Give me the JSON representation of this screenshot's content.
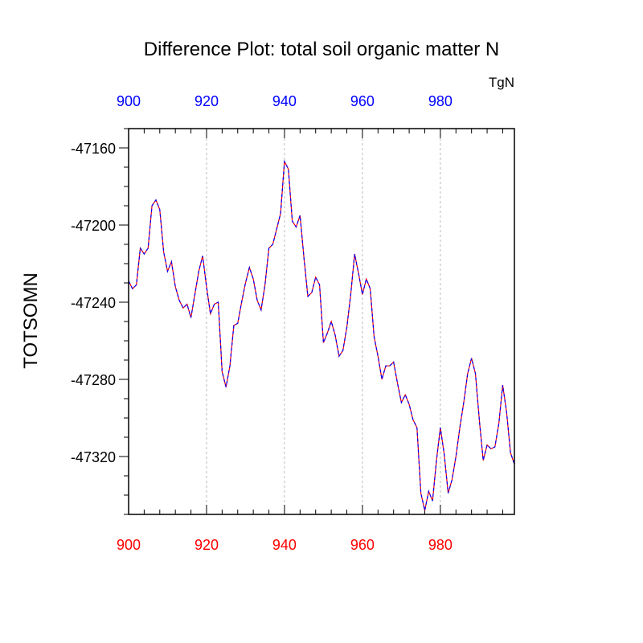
{
  "chart_data": {
    "type": "line",
    "title": "Difference Plot: total soil organic matter N",
    "units": "TgN",
    "ylabel": "TOTSOMN",
    "xlabel": "",
    "xlim": [
      900,
      999
    ],
    "ylim": [
      -47350,
      -47150
    ],
    "x_ticks": [
      900,
      920,
      940,
      960,
      980
    ],
    "y_ticks": [
      -47160,
      -47200,
      -47240,
      -47280,
      -47320
    ],
    "bottom_tick_color": "#ff0000",
    "top_tick_color": "#0000ff",
    "line_colors": [
      "#ff0000",
      "#0000ff"
    ],
    "grid": "vertical dotted at x ticks",
    "series": [
      {
        "x": [
          900,
          901,
          902,
          903,
          904,
          905,
          906,
          907,
          908,
          909,
          910,
          911,
          912,
          913,
          914,
          915,
          916,
          917,
          918,
          919,
          920,
          921,
          922,
          923,
          924,
          925,
          926,
          927,
          928,
          929,
          930,
          931,
          932,
          933,
          934,
          935,
          936,
          937,
          938,
          939,
          940,
          941,
          942,
          943,
          944,
          945,
          946,
          947,
          948,
          949,
          950,
          951,
          952,
          953,
          954,
          955,
          956,
          957,
          958,
          959,
          960,
          961,
          962,
          963,
          964,
          965,
          966,
          967,
          968,
          969,
          970,
          971,
          972,
          973,
          974,
          975,
          976,
          977,
          978,
          979,
          980,
          981,
          982,
          983,
          984,
          985,
          986,
          987,
          988,
          989,
          990,
          991,
          992,
          993,
          994,
          995,
          996,
          997,
          998,
          999
        ],
        "values": [
          -47229,
          -47233,
          -47231,
          -47212,
          -47215,
          -47212,
          -47190,
          -47187,
          -47192,
          -47214,
          -47224,
          -47219,
          -47232,
          -47239,
          -47243,
          -47241,
          -47248,
          -47236,
          -47224,
          -47216,
          -47232,
          -47246,
          -47241,
          -47240,
          -47276,
          -47284,
          -47273,
          -47252,
          -47251,
          -47240,
          -47230,
          -47222,
          -47228,
          -47239,
          -47244,
          -47231,
          -47212,
          -47210,
          -47202,
          -47194,
          -47167,
          -47171,
          -47198,
          -47201,
          -47195,
          -47217,
          -47237,
          -47235,
          -47227,
          -47231,
          -47261,
          -47256,
          -47250,
          -47257,
          -47268,
          -47265,
          -47253,
          -47236,
          -47215,
          -47225,
          -47236,
          -47228,
          -47233,
          -47258,
          -47268,
          -47280,
          -47273,
          -47273,
          -47271,
          -47282,
          -47292,
          -47288,
          -47293,
          -47301,
          -47305,
          -47339,
          -47348,
          -47338,
          -47343,
          -47322,
          -47305,
          -47319,
          -47339,
          -47332,
          -47320,
          -47305,
          -47292,
          -47277,
          -47269,
          -47277,
          -47301,
          -47322,
          -47314,
          -47316,
          -47315,
          -47303,
          -47283,
          -47297,
          -47318,
          -47324
        ]
      }
    ]
  }
}
